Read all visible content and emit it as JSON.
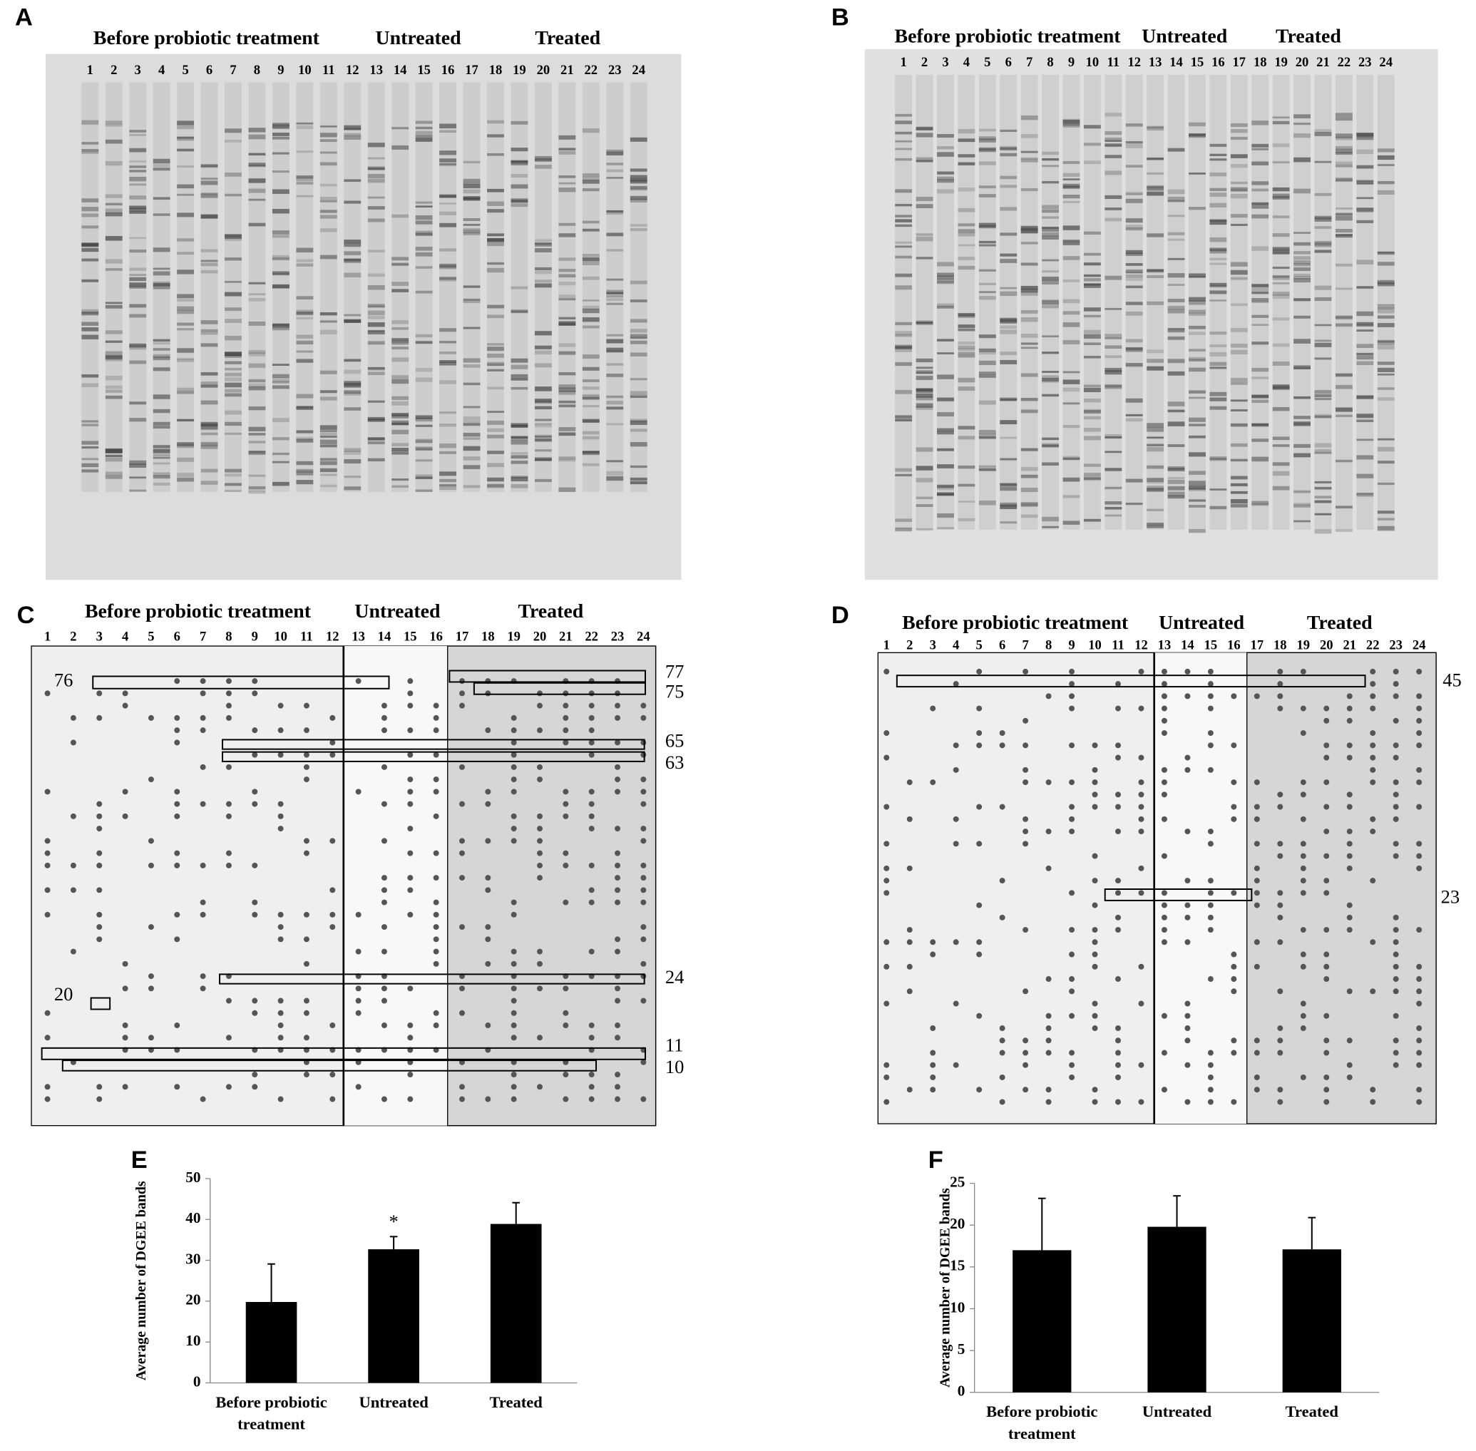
{
  "panels": [
    {
      "letter": "A",
      "groups": [
        "Before probiotic treatment",
        "Untreated",
        "Treated"
      ],
      "lanes": [
        1,
        2,
        3,
        4,
        5,
        6,
        7,
        8,
        9,
        10,
        11,
        12,
        13,
        14,
        15,
        16,
        17,
        18,
        19,
        20,
        21,
        22,
        23,
        24
      ]
    },
    {
      "letter": "B",
      "groups": [
        "Before probiotic treatment",
        "Untreated",
        "Treated"
      ],
      "lanes": [
        1,
        2,
        3,
        4,
        5,
        6,
        7,
        8,
        9,
        10,
        11,
        12,
        13,
        14,
        15,
        16,
        17,
        18,
        19,
        20,
        21,
        22,
        23,
        24
      ]
    },
    {
      "letter": "C",
      "groups": [
        "Before probiotic treatment",
        "Untreated",
        "Treated"
      ],
      "lanes": [
        1,
        2,
        3,
        4,
        5,
        6,
        7,
        8,
        9,
        10,
        11,
        12,
        13,
        14,
        15,
        16,
        17,
        18,
        19,
        20,
        21,
        22,
        23,
        24
      ],
      "band_labels": [
        76,
        77,
        75,
        65,
        63,
        24,
        20,
        11,
        10
      ]
    },
    {
      "letter": "D",
      "groups": [
        "Before probiotic treatment",
        "Untreated",
        "Treated"
      ],
      "lanes": [
        1,
        2,
        3,
        4,
        5,
        6,
        7,
        8,
        9,
        10,
        11,
        12,
        13,
        14,
        15,
        16,
        17,
        18,
        19,
        20,
        21,
        22,
        23,
        24
      ],
      "band_labels": [
        45,
        23
      ]
    },
    {
      "letter": "E"
    },
    {
      "letter": "F"
    }
  ],
  "chart_data": [
    {
      "type": "bar",
      "y_label": "Average number of DGEE bands",
      "categories": [
        "Before probiotic treatment",
        "Untreated",
        "Treated"
      ],
      "values": [
        19.8,
        32.7,
        38.9
      ],
      "errors": [
        9.3,
        3.1,
        5.2
      ],
      "color": "#000000",
      "ylim": [
        0,
        50
      ],
      "yticks": [
        0,
        10,
        20,
        30,
        40,
        50
      ],
      "annotation": "*"
    },
    {
      "type": "bar",
      "y_label": "Average number of DGEE bands",
      "categories": [
        "Before probiotic treatment",
        "Untreated",
        "Treated"
      ],
      "values": [
        17,
        19.8,
        17.1
      ],
      "errors": [
        6.2,
        3.7,
        3.8
      ],
      "color": "#000000",
      "ylim": [
        0,
        25
      ],
      "yticks": [
        0,
        5,
        10,
        15,
        20,
        25
      ]
    }
  ]
}
